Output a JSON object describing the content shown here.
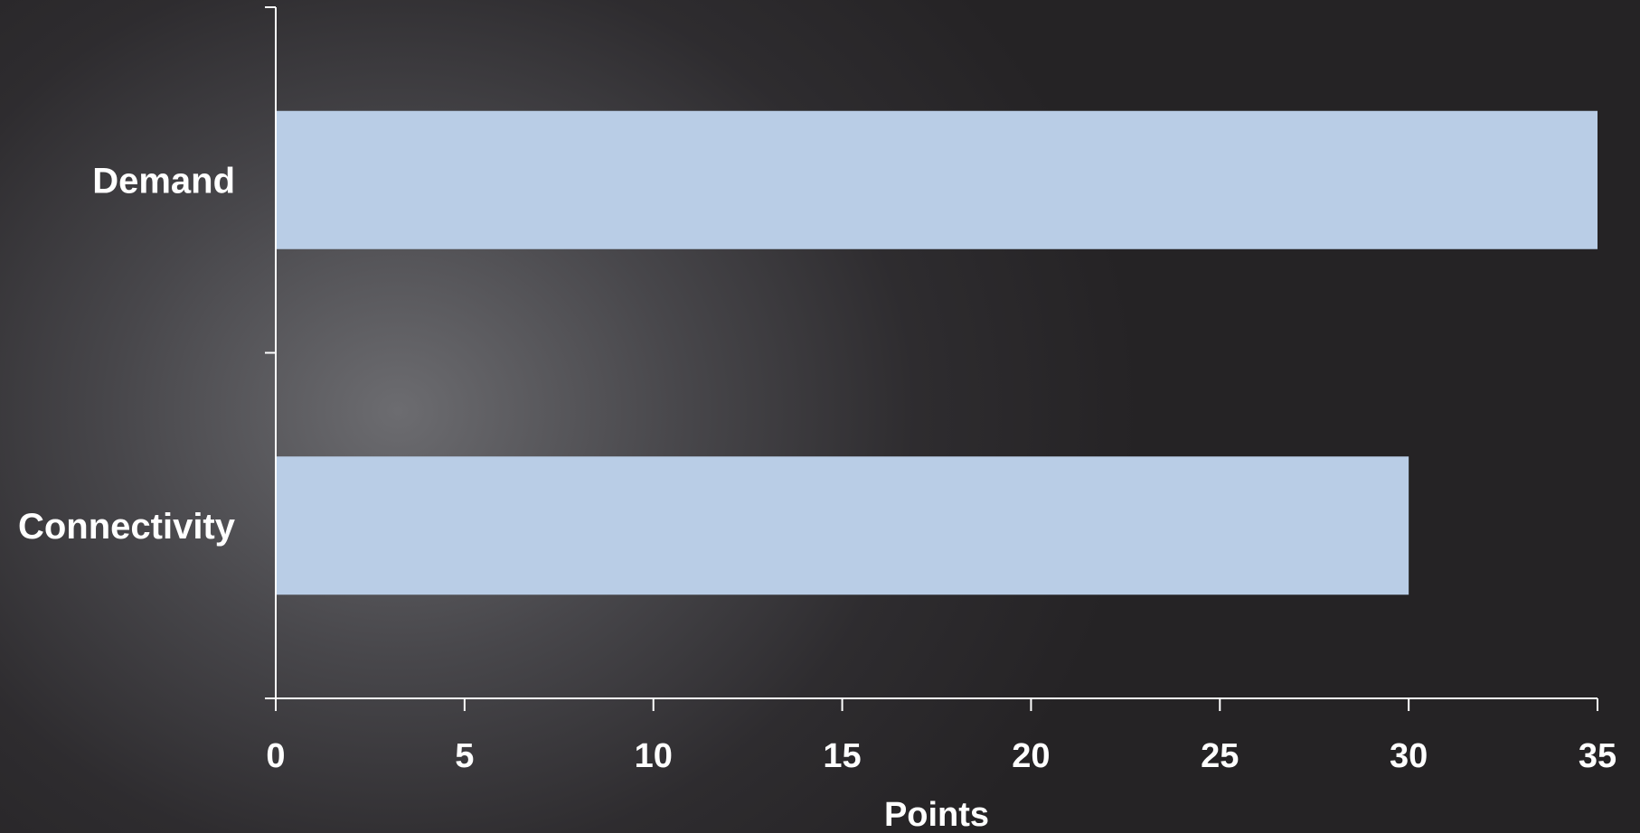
{
  "chart_data": {
    "type": "bar",
    "orientation": "horizontal",
    "categories": [
      "Demand",
      "Connectivity"
    ],
    "values": [
      35,
      30
    ],
    "title": "",
    "xlabel": "Points",
    "ylabel": "",
    "xlim": [
      0,
      35
    ],
    "xticks": [
      0,
      5,
      10,
      15,
      20,
      25,
      30,
      35
    ],
    "grid": false,
    "legend": "none",
    "bar_color": "#b9cde6",
    "axis_color": "#ffffff",
    "text_color": "#ffffff"
  }
}
